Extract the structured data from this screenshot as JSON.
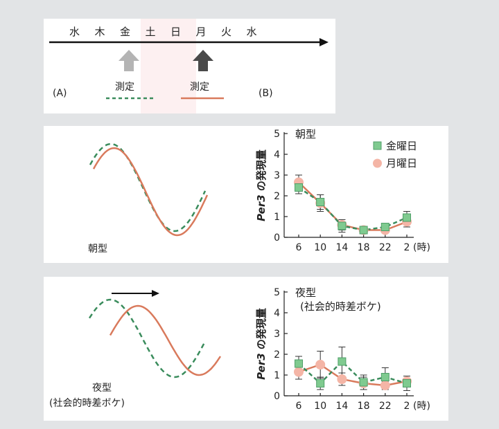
{
  "schedule": {
    "days": [
      "水",
      "木",
      "金",
      "土",
      "日",
      "月",
      "火",
      "水"
    ],
    "measure_label_a": "測定",
    "measure_label_b": "測定",
    "label_a": "(A)",
    "label_b": "(B)",
    "colors": {
      "arrow_a": "#b4b4b4",
      "arrow_b": "#4a4a4a",
      "weekend_shade": "#fdf0f1",
      "friday": "#3a8c5c",
      "monday": "#d97a5c"
    }
  },
  "morning": {
    "left_label": "朝型"
  },
  "night": {
    "left_label_line1": "夜型",
    "left_label_line2": "(社会的時差ボケ)"
  },
  "chart_data": [
    {
      "type": "line",
      "title": "朝型",
      "ylabel": "Per3 の発現量",
      "ylabel_italic": "Per3",
      "ylabel_rest": " の発現量",
      "unit": "(時)",
      "x": [
        "6",
        "10",
        "14",
        "18",
        "22",
        "2"
      ],
      "ylim": [
        0,
        5
      ],
      "yticks": [
        "0",
        "1",
        "2",
        "3",
        "4",
        "5"
      ],
      "legend_position": "top-right",
      "series": [
        {
          "name": "金曜日",
          "marker": "square",
          "line": "dashed",
          "color": "#3a8c5c",
          "fill": "#7fca8f",
          "values": [
            2.4,
            1.7,
            0.55,
            0.35,
            0.5,
            0.95
          ],
          "err": [
            0.3,
            0.35,
            0.3,
            0.1,
            0.1,
            0.3
          ]
        },
        {
          "name": "月曜日",
          "marker": "circle",
          "line": "solid",
          "color": "#d97a5c",
          "fill": "#f4b5a6",
          "values": [
            2.65,
            1.65,
            0.6,
            0.35,
            0.35,
            0.75
          ],
          "err": [
            0.35,
            0.4,
            0.25,
            0.1,
            0.1,
            0.25
          ]
        }
      ]
    },
    {
      "type": "line",
      "title": "夜型",
      "subtitle": "(社会的時差ボケ)",
      "ylabel": "Per3 の発現量",
      "ylabel_italic": "Per3",
      "ylabel_rest": " の発現量",
      "unit": "(時)",
      "x": [
        "6",
        "10",
        "14",
        "18",
        "22",
        "2"
      ],
      "ylim": [
        0,
        5
      ],
      "yticks": [
        "0",
        "1",
        "2",
        "3",
        "4",
        "5"
      ],
      "series": [
        {
          "name": "金曜日",
          "marker": "square",
          "line": "dashed",
          "color": "#3a8c5c",
          "fill": "#7fca8f",
          "values": [
            1.55,
            0.6,
            1.65,
            0.65,
            0.9,
            0.6
          ],
          "err": [
            0.35,
            0.3,
            0.7,
            0.35,
            0.45,
            0.35
          ]
        },
        {
          "name": "月曜日",
          "marker": "circle",
          "line": "solid",
          "color": "#d97a5c",
          "fill": "#f4b5a6",
          "values": [
            1.15,
            1.5,
            0.8,
            0.6,
            0.5,
            0.7
          ],
          "err": [
            0.35,
            0.65,
            0.3,
            0.3,
            0.2,
            0.25
          ]
        }
      ]
    }
  ]
}
